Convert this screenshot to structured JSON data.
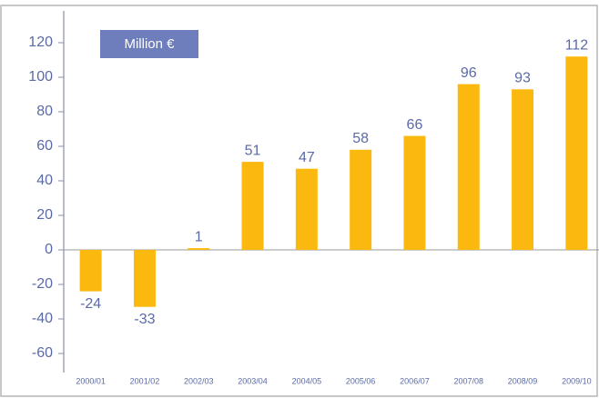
{
  "chart_data": {
    "type": "bar",
    "title": "Million €",
    "categories": [
      "2000/01",
      "2001/02",
      "2002/03",
      "2003/04",
      "2004/05",
      "2005/06",
      "2006/07",
      "2007/08",
      "2008/09",
      "2009/10"
    ],
    "values": [
      -24,
      -33,
      1,
      51,
      47,
      58,
      66,
      96,
      93,
      112
    ],
    "color": "#fbb910",
    "ylim": [
      -70,
      130
    ],
    "yticks": [
      -60,
      -40,
      -20,
      0,
      20,
      40,
      60,
      80,
      100,
      120
    ]
  }
}
